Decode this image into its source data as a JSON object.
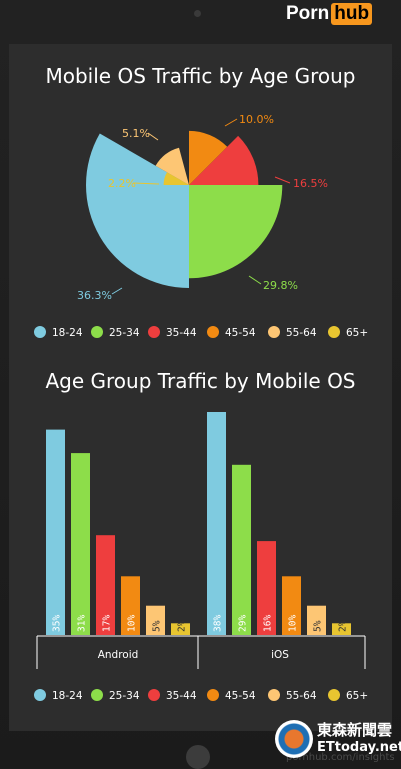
{
  "branding": {
    "logo_left": "Porn",
    "logo_right": "hub"
  },
  "colors": {
    "age_18_24": "#7fcbe0",
    "age_25_34": "#8ddd4a",
    "age_35_44": "#ee3e3e",
    "age_45_54": "#f28a12",
    "age_55_64": "#fdc674",
    "age_65_plus": "#e8c530",
    "background": "#2d2d2d",
    "text": "#ffffff"
  },
  "chart_data": [
    {
      "type": "pie",
      "variant": "polar-area",
      "title": "Mobile OS Traffic by Age Group",
      "categories": [
        "18-24",
        "25-34",
        "35-44",
        "45-54",
        "55-64",
        "65+"
      ],
      "values": [
        36.3,
        29.8,
        16.5,
        10.0,
        5.1,
        2.2
      ],
      "labels": [
        "36.3%",
        "29.8%",
        "16.5%",
        "10.0%",
        "5.1%",
        "2.2%"
      ],
      "legend": [
        "18-24",
        "25-34",
        "35-44",
        "45-54",
        "55-64",
        "65+"
      ],
      "legend_position": "bottom"
    },
    {
      "type": "bar",
      "title": "Age Group Traffic by Mobile OS",
      "categories": [
        "Android",
        "iOS"
      ],
      "series": [
        {
          "name": "18-24",
          "values": [
            35,
            38
          ]
        },
        {
          "name": "25-34",
          "values": [
            31,
            29
          ]
        },
        {
          "name": "35-44",
          "values": [
            17,
            16
          ]
        },
        {
          "name": "45-54",
          "values": [
            10,
            10
          ]
        },
        {
          "name": "55-64",
          "values": [
            5,
            5
          ]
        },
        {
          "name": "65+",
          "values": [
            2,
            2
          ]
        }
      ],
      "data_labels": [
        [
          "35%",
          "31%",
          "17%",
          "10%",
          "5%",
          "2%"
        ],
        [
          "38%",
          "29%",
          "16%",
          "10%",
          "5%",
          "2%"
        ]
      ],
      "ylim": [
        0,
        40
      ],
      "grid": false,
      "legend": [
        "18-24",
        "25-34",
        "35-44",
        "45-54",
        "55-64",
        "65+"
      ],
      "legend_position": "bottom"
    }
  ],
  "watermark": {
    "line1": "東森新聞雲",
    "line2": "ETtoday.net"
  },
  "source": "pornhub.com/insights"
}
